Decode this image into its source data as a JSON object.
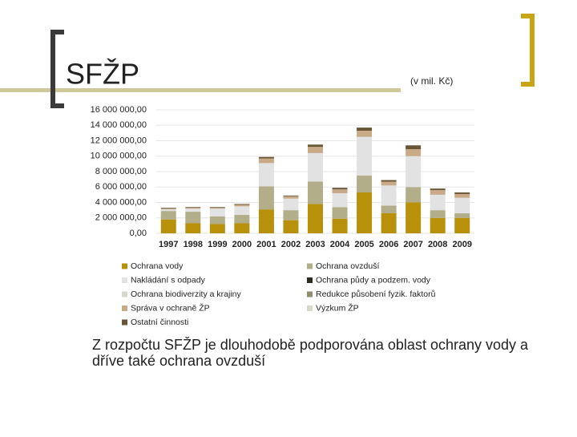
{
  "chart_data": {
    "type": "stacked_bar",
    "title": "SFŽP",
    "subtitle": "(v mil. Kč)",
    "annotation": "Z rozpočtu SFŽP je dlouhodobě podporována oblast ochrany vody a dříve také ochrana ovzduší",
    "categories": [
      "1997",
      "1998",
      "1999",
      "2000",
      "2001",
      "2002",
      "2003",
      "2004",
      "2005",
      "2006",
      "2007",
      "2008",
      "2009"
    ],
    "ylim": [
      0,
      16000000
    ],
    "yticks": [
      {
        "value": 0,
        "label": "0,00"
      },
      {
        "value": 2000000,
        "label": "2 000 000,00"
      },
      {
        "value": 4000000,
        "label": "4 000 000,00"
      },
      {
        "value": 6000000,
        "label": "6 000 000,00"
      },
      {
        "value": 8000000,
        "label": "8 000 000,00"
      },
      {
        "value": 10000000,
        "label": "10 000 000,00"
      },
      {
        "value": 12000000,
        "label": "12 000 000,00"
      },
      {
        "value": 14000000,
        "label": "14 000 000,00"
      },
      {
        "value": 16000000,
        "label": "16 000 000,00"
      }
    ],
    "grid": true,
    "series": [
      {
        "name": "Ochrana vody",
        "color": "#b8900a",
        "values": [
          1800000,
          1300000,
          1200000,
          1300000,
          3100000,
          1700000,
          3800000,
          1900000,
          5300000,
          2600000,
          4000000,
          2000000,
          2000000
        ]
      },
      {
        "name": "Ochrana ovzduší",
        "color": "#b3ae8a",
        "values": [
          1100000,
          1500000,
          1000000,
          1100000,
          3000000,
          1300000,
          2900000,
          1500000,
          2200000,
          1000000,
          2000000,
          1000000,
          600000
        ]
      },
      {
        "name": "Nakládání s odpady",
        "color": "#e2e2e2",
        "values": [
          200000,
          400000,
          1000000,
          1100000,
          3000000,
          1500000,
          3700000,
          1800000,
          5000000,
          2600000,
          4000000,
          2000000,
          2000000
        ]
      },
      {
        "name": "Ochrana půdy a podzem. vody",
        "color": "#2f2a20",
        "values": [
          0,
          0,
          0,
          0,
          0,
          0,
          0,
          0,
          0,
          0,
          0,
          0,
          0
        ]
      },
      {
        "name": "Ochrana biodiverzity a krajiny",
        "color": "#d9d6cc",
        "values": [
          0,
          0,
          0,
          0,
          0,
          0,
          0,
          0,
          0,
          0,
          0,
          0,
          0
        ]
      },
      {
        "name": "Redukce působení fyzik. faktorů",
        "color": "#8f8c6e",
        "values": [
          0,
          0,
          0,
          0,
          0,
          0,
          0,
          0,
          0,
          0,
          0,
          0,
          0
        ]
      },
      {
        "name": "Správa v ochraně ŽP",
        "color": "#c9aa86",
        "values": [
          100000,
          100000,
          100000,
          200000,
          600000,
          300000,
          800000,
          500000,
          800000,
          500000,
          900000,
          600000,
          500000
        ]
      },
      {
        "name": "Výzkum ŽP",
        "color": "#d8d8c6",
        "values": [
          0,
          0,
          0,
          0,
          0,
          0,
          0,
          0,
          0,
          0,
          0,
          0,
          0
        ]
      },
      {
        "name": "Ostatní činnosti",
        "color": "#675534",
        "values": [
          100000,
          100000,
          100000,
          100000,
          200000,
          100000,
          300000,
          200000,
          400000,
          200000,
          500000,
          200000,
          200000
        ]
      }
    ]
  }
}
